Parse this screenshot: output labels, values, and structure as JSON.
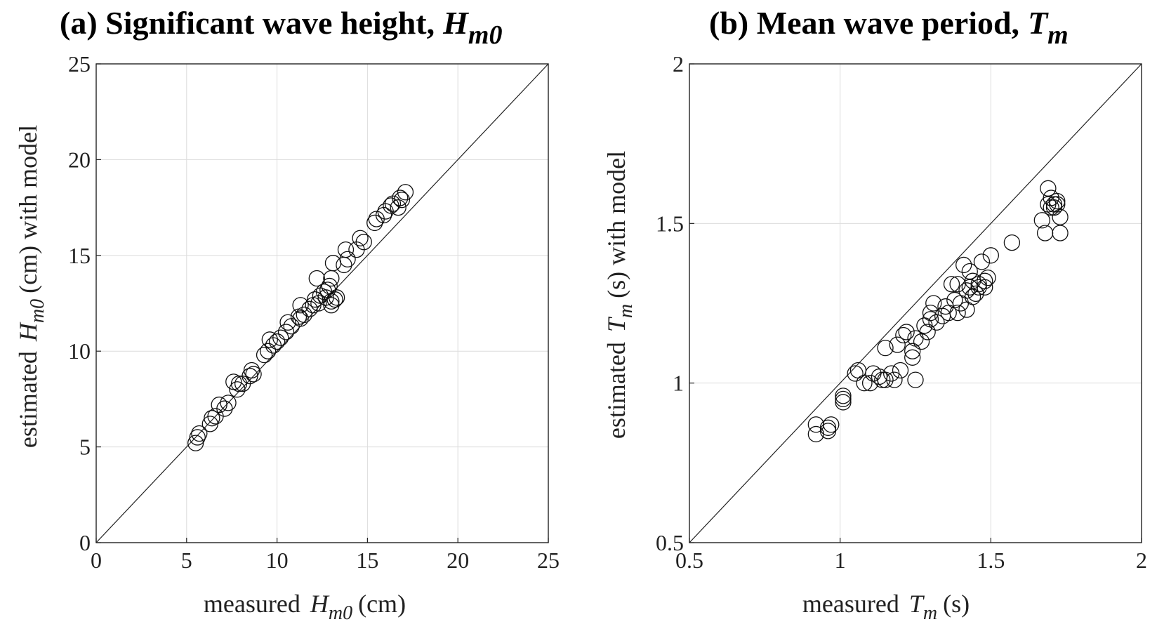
{
  "chart_data": [
    {
      "type": "scatter",
      "title": "(a) Significant wave height,",
      "title_symbol": "H",
      "title_symbol_sub": "m0",
      "xlabel_prefix": "measured",
      "xlabel_symbol": "H",
      "xlabel_symbol_sub": "m0",
      "xlabel_unit": "(cm)",
      "ylabel_prefix": "estimated",
      "ylabel_symbol": "H",
      "ylabel_symbol_sub": "m0",
      "ylabel_suffix": "(cm) with model",
      "xlim": [
        0,
        25
      ],
      "ylim": [
        0,
        25
      ],
      "xticks": [
        "0",
        "5",
        "10",
        "15",
        "20",
        "25"
      ],
      "yticks": [
        "0",
        "5",
        "10",
        "15",
        "20",
        "25"
      ],
      "grid": true,
      "reference_line": "y = x",
      "marker": "open circle",
      "points": [
        [
          5.5,
          5.2
        ],
        [
          5.6,
          5.5
        ],
        [
          5.7,
          5.7
        ],
        [
          6.3,
          6.2
        ],
        [
          6.4,
          6.5
        ],
        [
          6.6,
          6.6
        ],
        [
          6.8,
          7.2
        ],
        [
          7.1,
          7.0
        ],
        [
          7.3,
          7.3
        ],
        [
          7.8,
          8.0
        ],
        [
          7.9,
          8.3
        ],
        [
          7.6,
          8.4
        ],
        [
          8.1,
          8.3
        ],
        [
          8.5,
          8.7
        ],
        [
          8.6,
          9.0
        ],
        [
          8.7,
          8.8
        ],
        [
          9.3,
          9.8
        ],
        [
          9.5,
          10.0
        ],
        [
          9.6,
          10.6
        ],
        [
          9.8,
          10.3
        ],
        [
          10.0,
          10.5
        ],
        [
          10.2,
          10.7
        ],
        [
          10.5,
          11.0
        ],
        [
          10.6,
          11.5
        ],
        [
          10.8,
          11.3
        ],
        [
          11.2,
          11.8
        ],
        [
          11.3,
          11.7
        ],
        [
          11.3,
          12.4
        ],
        [
          11.5,
          11.9
        ],
        [
          11.8,
          12.2
        ],
        [
          12.0,
          12.4
        ],
        [
          12.1,
          12.7
        ],
        [
          12.3,
          12.5
        ],
        [
          12.4,
          12.9
        ],
        [
          12.2,
          13.8
        ],
        [
          12.6,
          13.1
        ],
        [
          12.7,
          12.8
        ],
        [
          12.8,
          13.2
        ],
        [
          12.9,
          13.4
        ],
        [
          13.0,
          12.6
        ],
        [
          13.0,
          12.4
        ],
        [
          13.2,
          12.7
        ],
        [
          13.3,
          12.8
        ],
        [
          13.0,
          13.8
        ],
        [
          13.1,
          14.6
        ],
        [
          13.7,
          14.5
        ],
        [
          13.8,
          15.3
        ],
        [
          13.9,
          14.8
        ],
        [
          14.4,
          15.3
        ],
        [
          14.6,
          15.9
        ],
        [
          14.8,
          15.7
        ],
        [
          15.4,
          16.7
        ],
        [
          15.5,
          16.9
        ],
        [
          15.9,
          17.1
        ],
        [
          16.0,
          17.3
        ],
        [
          16.3,
          17.6
        ],
        [
          16.4,
          17.7
        ],
        [
          16.7,
          17.5
        ],
        [
          16.8,
          18.0
        ],
        [
          16.9,
          17.9
        ],
        [
          17.1,
          18.3
        ]
      ]
    },
    {
      "type": "scatter",
      "title": "(b) Mean wave period,",
      "title_symbol": "T",
      "title_symbol_sub": "m",
      "xlabel_prefix": "measured",
      "xlabel_symbol": "T",
      "xlabel_symbol_sub": "m",
      "xlabel_unit": "(s)",
      "ylabel_prefix": "estimated",
      "ylabel_symbol": "T",
      "ylabel_symbol_sub": "m",
      "ylabel_suffix": "(s) with model",
      "xlim": [
        0.5,
        2
      ],
      "ylim": [
        0.5,
        2
      ],
      "xticks": [
        "0.5",
        "1",
        "1.5",
        "2"
      ],
      "yticks": [
        "0.5",
        "1",
        "1.5",
        "2"
      ],
      "grid": true,
      "reference_line": "y = x",
      "marker": "open circle",
      "points": [
        [
          0.92,
          0.84
        ],
        [
          0.92,
          0.87
        ],
        [
          0.96,
          0.86
        ],
        [
          0.97,
          0.87
        ],
        [
          0.96,
          0.85
        ],
        [
          1.01,
          0.94
        ],
        [
          1.01,
          0.96
        ],
        [
          1.01,
          0.95
        ],
        [
          1.05,
          1.03
        ],
        [
          1.06,
          1.04
        ],
        [
          1.08,
          1.0
        ],
        [
          1.1,
          1.0
        ],
        [
          1.11,
          1.03
        ],
        [
          1.13,
          1.02
        ],
        [
          1.14,
          1.01
        ],
        [
          1.15,
          1.01
        ],
        [
          1.15,
          1.11
        ],
        [
          1.17,
          1.03
        ],
        [
          1.18,
          1.01
        ],
        [
          1.19,
          1.12
        ],
        [
          1.2,
          1.04
        ],
        [
          1.21,
          1.15
        ],
        [
          1.22,
          1.16
        ],
        [
          1.24,
          1.08
        ],
        [
          1.24,
          1.1
        ],
        [
          1.25,
          1.14
        ],
        [
          1.25,
          1.01
        ],
        [
          1.27,
          1.13
        ],
        [
          1.28,
          1.18
        ],
        [
          1.29,
          1.16
        ],
        [
          1.3,
          1.22
        ],
        [
          1.3,
          1.2
        ],
        [
          1.31,
          1.25
        ],
        [
          1.32,
          1.19
        ],
        [
          1.34,
          1.21
        ],
        [
          1.35,
          1.24
        ],
        [
          1.36,
          1.22
        ],
        [
          1.37,
          1.31
        ],
        [
          1.38,
          1.26
        ],
        [
          1.39,
          1.31
        ],
        [
          1.39,
          1.22
        ],
        [
          1.4,
          1.25
        ],
        [
          1.41,
          1.37
        ],
        [
          1.42,
          1.29
        ],
        [
          1.42,
          1.23
        ],
        [
          1.43,
          1.35
        ],
        [
          1.43,
          1.3
        ],
        [
          1.44,
          1.32
        ],
        [
          1.44,
          1.27
        ],
        [
          1.45,
          1.28
        ],
        [
          1.46,
          1.31
        ],
        [
          1.46,
          1.3
        ],
        [
          1.47,
          1.38
        ],
        [
          1.48,
          1.32
        ],
        [
          1.48,
          1.3
        ],
        [
          1.49,
          1.33
        ],
        [
          1.5,
          1.4
        ],
        [
          1.57,
          1.44
        ],
        [
          1.67,
          1.51
        ],
        [
          1.68,
          1.47
        ],
        [
          1.69,
          1.61
        ],
        [
          1.69,
          1.56
        ],
        [
          1.7,
          1.58
        ],
        [
          1.7,
          1.55
        ],
        [
          1.71,
          1.56
        ],
        [
          1.71,
          1.55
        ],
        [
          1.72,
          1.56
        ],
        [
          1.72,
          1.57
        ],
        [
          1.73,
          1.47
        ],
        [
          1.73,
          1.52
        ]
      ]
    }
  ]
}
